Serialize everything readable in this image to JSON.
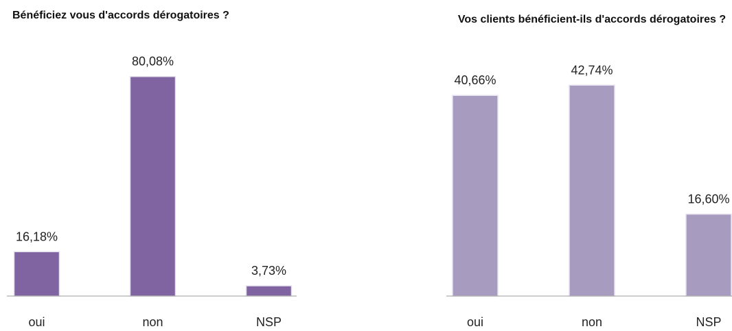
{
  "chart_data": [
    {
      "type": "bar",
      "title": "Bénéficiez vous d'accords dérogatoires ?",
      "categories": [
        "oui",
        "non",
        "NSP"
      ],
      "values": [
        16.18,
        80.08,
        3.73
      ],
      "value_labels": [
        "16,18%",
        "80,08%",
        "3,73%"
      ],
      "color": "#8064a2",
      "ylim": [
        0,
        90
      ]
    },
    {
      "type": "bar",
      "title": "Vos clients bénéficient-ils d'accords dérogatoires ?",
      "categories": [
        "oui",
        "non",
        "NSP"
      ],
      "values": [
        40.66,
        42.74,
        16.6
      ],
      "value_labels": [
        "40,66%",
        "42,74%",
        "16,60%"
      ],
      "color": "#a89bc0",
      "ylim": [
        0,
        50
      ]
    }
  ]
}
